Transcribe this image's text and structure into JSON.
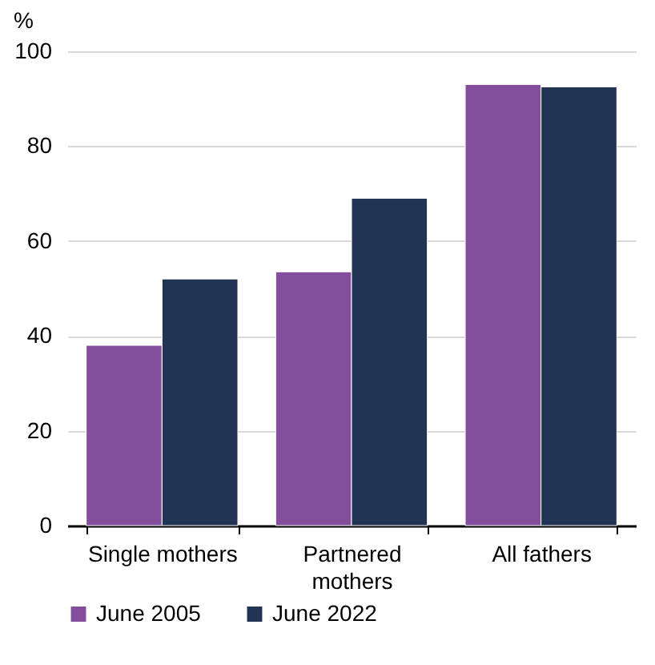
{
  "chart_data": {
    "type": "bar",
    "ylabel": "%",
    "categories": [
      "Single mothers",
      "Partnered mothers",
      "All fathers"
    ],
    "series": [
      {
        "name": "June 2005",
        "color": "#834e9c",
        "values": [
          38,
          53.5,
          93
        ]
      },
      {
        "name": "June 2022",
        "color": "#223454",
        "values": [
          52,
          69,
          92.5
        ]
      }
    ],
    "ylim": [
      0,
      100
    ],
    "yticks": [
      0,
      20,
      40,
      60,
      80,
      100
    ],
    "grid": "y",
    "legend": "bottom"
  }
}
